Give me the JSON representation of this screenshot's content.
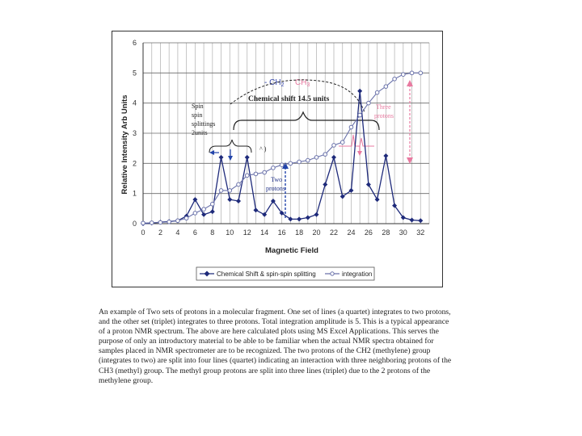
{
  "chart_data": {
    "type": "line",
    "title": "",
    "xlabel": "Magnetic Field",
    "ylabel": "Relative Intensity Arb Units",
    "xlim": [
      0,
      33
    ],
    "ylim": [
      0,
      6
    ],
    "x_ticks": [
      0,
      2,
      4,
      6,
      8,
      10,
      12,
      14,
      16,
      18,
      20,
      22,
      24,
      26,
      28,
      30,
      32
    ],
    "y_ticks": [
      0,
      1,
      2,
      3,
      4,
      5,
      6
    ],
    "grid": "vertical and horizontal lines",
    "legend_position": "bottom",
    "series": [
      {
        "name": "Chemical Shift & spin-spin splitting",
        "color": "#1e2a7a",
        "marker": "diamond",
        "points": [
          [
            0,
            0
          ],
          [
            1,
            0.02
          ],
          [
            2,
            0.05
          ],
          [
            3,
            0.07
          ],
          [
            4,
            0.1
          ],
          [
            5,
            0.25
          ],
          [
            6,
            0.8
          ],
          [
            7,
            0.3
          ],
          [
            8,
            0.4
          ],
          [
            9,
            2.2
          ],
          [
            10,
            0.8
          ],
          [
            11,
            0.75
          ],
          [
            12,
            2.2
          ],
          [
            13,
            0.45
          ],
          [
            14,
            0.3
          ],
          [
            15,
            0.75
          ],
          [
            16,
            0.35
          ],
          [
            17,
            0.15
          ],
          [
            18,
            0.15
          ],
          [
            19,
            0.2
          ],
          [
            20,
            0.3
          ],
          [
            21,
            1.3
          ],
          [
            22,
            2.2
          ],
          [
            23,
            0.9
          ],
          [
            24,
            1.1
          ],
          [
            25,
            4.4
          ],
          [
            26,
            1.3
          ],
          [
            27,
            0.8
          ],
          [
            28,
            2.25
          ],
          [
            29,
            0.6
          ],
          [
            30,
            0.2
          ],
          [
            31,
            0.12
          ],
          [
            32,
            0.1
          ]
        ]
      },
      {
        "name": "integration",
        "color": "#6a72aa",
        "marker": "circle",
        "points": [
          [
            0,
            0.02
          ],
          [
            1,
            0.03
          ],
          [
            2,
            0.04
          ],
          [
            3,
            0.06
          ],
          [
            4,
            0.1
          ],
          [
            5,
            0.18
          ],
          [
            6,
            0.35
          ],
          [
            7,
            0.48
          ],
          [
            8,
            0.65
          ],
          [
            9,
            1.1
          ],
          [
            10,
            1.1
          ],
          [
            11,
            1.3
          ],
          [
            12,
            1.6
          ],
          [
            13,
            1.65
          ],
          [
            14,
            1.7
          ],
          [
            15,
            1.85
          ],
          [
            16,
            1.95
          ],
          [
            17,
            2.0
          ],
          [
            18,
            2.05
          ],
          [
            19,
            2.1
          ],
          [
            20,
            2.2
          ],
          [
            21,
            2.3
          ],
          [
            22,
            2.6
          ],
          [
            23,
            2.7
          ],
          [
            24,
            3.2
          ],
          [
            25,
            3.6
          ],
          [
            26,
            4.0
          ],
          [
            27,
            4.35
          ],
          [
            28,
            4.55
          ],
          [
            29,
            4.8
          ],
          [
            30,
            4.95
          ],
          [
            31,
            5.0
          ],
          [
            32,
            5.0
          ]
        ]
      }
    ],
    "annotations": {
      "ch2": "- CH",
      "ch2_sub": "2",
      "ch3": "CH",
      "ch3_sub": "3",
      "chemical_shift": "Chemical shift 14.5 units",
      "spin_1": "Spin",
      "spin_2": "spin",
      "spin_3": "splittings",
      "spin_4": "2units",
      "two_1": "Two",
      "two_2": "protons",
      "three_1": "Three",
      "three_2": "protons"
    }
  },
  "caption": "An example of Two sets of protons in a molecular fragment. One set of lines (a quartet) integrates to two protons, and the other set (triplet) integrates to three protons. Total integration amplitude is 5. This is a typical appearance of a proton NMR spectrum. The above are here calculated plots using MS Excel Applications. This serves the purpose of only an introductory material to be able to be familiar when the actual NMR spectra obtained for samples placed in NMR spectrometer are to be recognized. The two protons of the CH2 (methylene) group (integrates to two) are split into four lines (quartet) indicating an interaction with three neighboring protons of the CH3 (methyl) group. The methyl group protons are split into three lines (triplet) due to the 2 protons of the methylene group."
}
